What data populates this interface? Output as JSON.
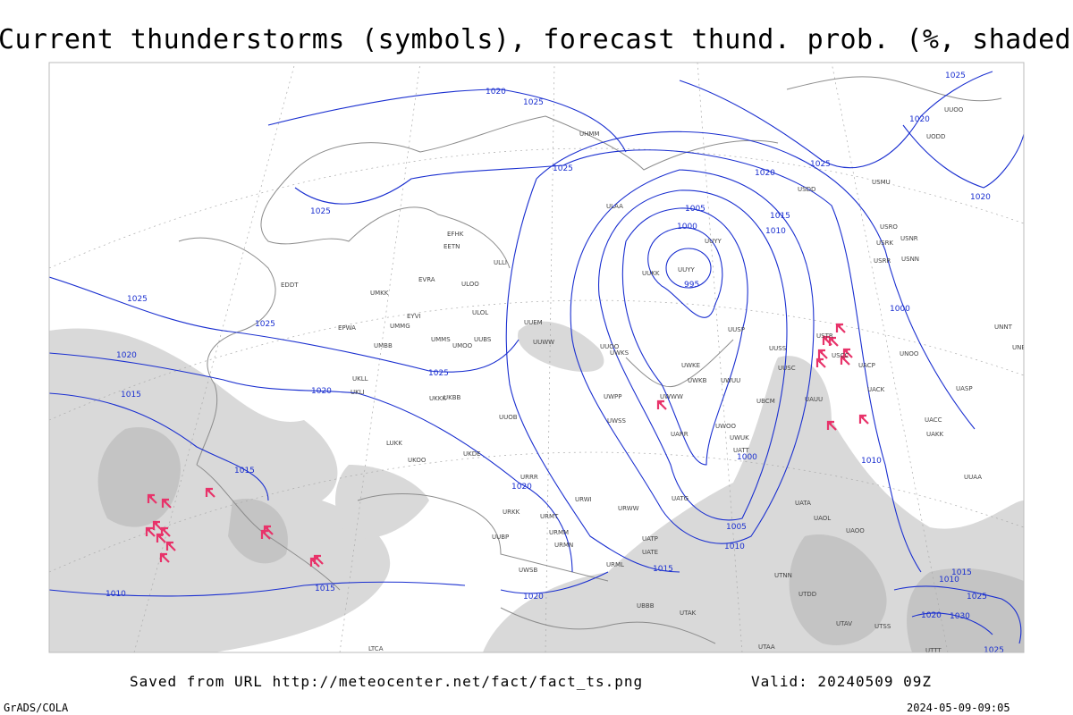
{
  "header": {
    "title": "Current thunderstorms (symbols), forecast thund. prob. (%, shaded)"
  },
  "isobar_labels": [
    "1020",
    "1025",
    "1025",
    "1025",
    "1025",
    "1025",
    "1020",
    "1015",
    "1020",
    "1025",
    "1015",
    "1020",
    "1005",
    "1000",
    "995",
    "1015",
    "1010",
    "1020",
    "1025",
    "1020",
    "1025",
    "1020",
    "1000",
    "1010",
    "1005",
    "1010",
    "1015",
    "1010",
    "1015",
    "1020",
    "1015",
    "1010",
    "1025",
    "1020",
    "1030",
    "1025",
    "1000"
  ],
  "station_labels": [
    "ULAA",
    "EFHK",
    "EETN",
    "ULLI",
    "ULOO",
    "UMKK",
    "EVRA",
    "EDDT",
    "ULOL",
    "UMMG",
    "EYVI",
    "EPWA",
    "UMBB",
    "UMMS",
    "UMOO",
    "UUBS",
    "UUYY",
    "UUKK",
    "UUYY",
    "UUEM",
    "UUWW",
    "UUOO",
    "UWKS",
    "UWKE",
    "UWKB",
    "UWUU",
    "UWPP",
    "UWWW",
    "UWSS",
    "UKKK",
    "UKLL",
    "UKLI",
    "UKBB",
    "LUKK",
    "UKOO",
    "UKDE",
    "UUOB",
    "URRR",
    "URKK",
    "URMT",
    "URMM",
    "URMN",
    "UUBP",
    "UWSB",
    "URWW",
    "URWI",
    "URML",
    "UATG",
    "UATE",
    "UATP",
    "UARR",
    "UWOO",
    "UWUK",
    "UATT",
    "UUSS",
    "UUSC",
    "UUSP",
    "UBCM",
    "UAUU",
    "USTR",
    "USCC",
    "UACP",
    "UACK",
    "UACC",
    "UAKK",
    "UNOO",
    "UASP",
    "USRR",
    "USNN",
    "USRK",
    "USNR",
    "USRO",
    "USMU",
    "USDD",
    "UUOO",
    "UNNT",
    "UNBB",
    "UATA",
    "UAOL",
    "UAOO",
    "UTNN",
    "UTDD",
    "UBBB",
    "UTAK",
    "UTAV",
    "UTSS",
    "LTCA",
    "UHMM",
    "UODD",
    "UUAA",
    "UTTT",
    "UTAA"
  ],
  "footer": {
    "source": "Saved from URL http://meteocenter.net/fact/fact_ts.png",
    "valid": "Valid: 20240509 09Z",
    "software": "GrADS/COLA",
    "timestamp": "2024-05-09-09:05"
  }
}
